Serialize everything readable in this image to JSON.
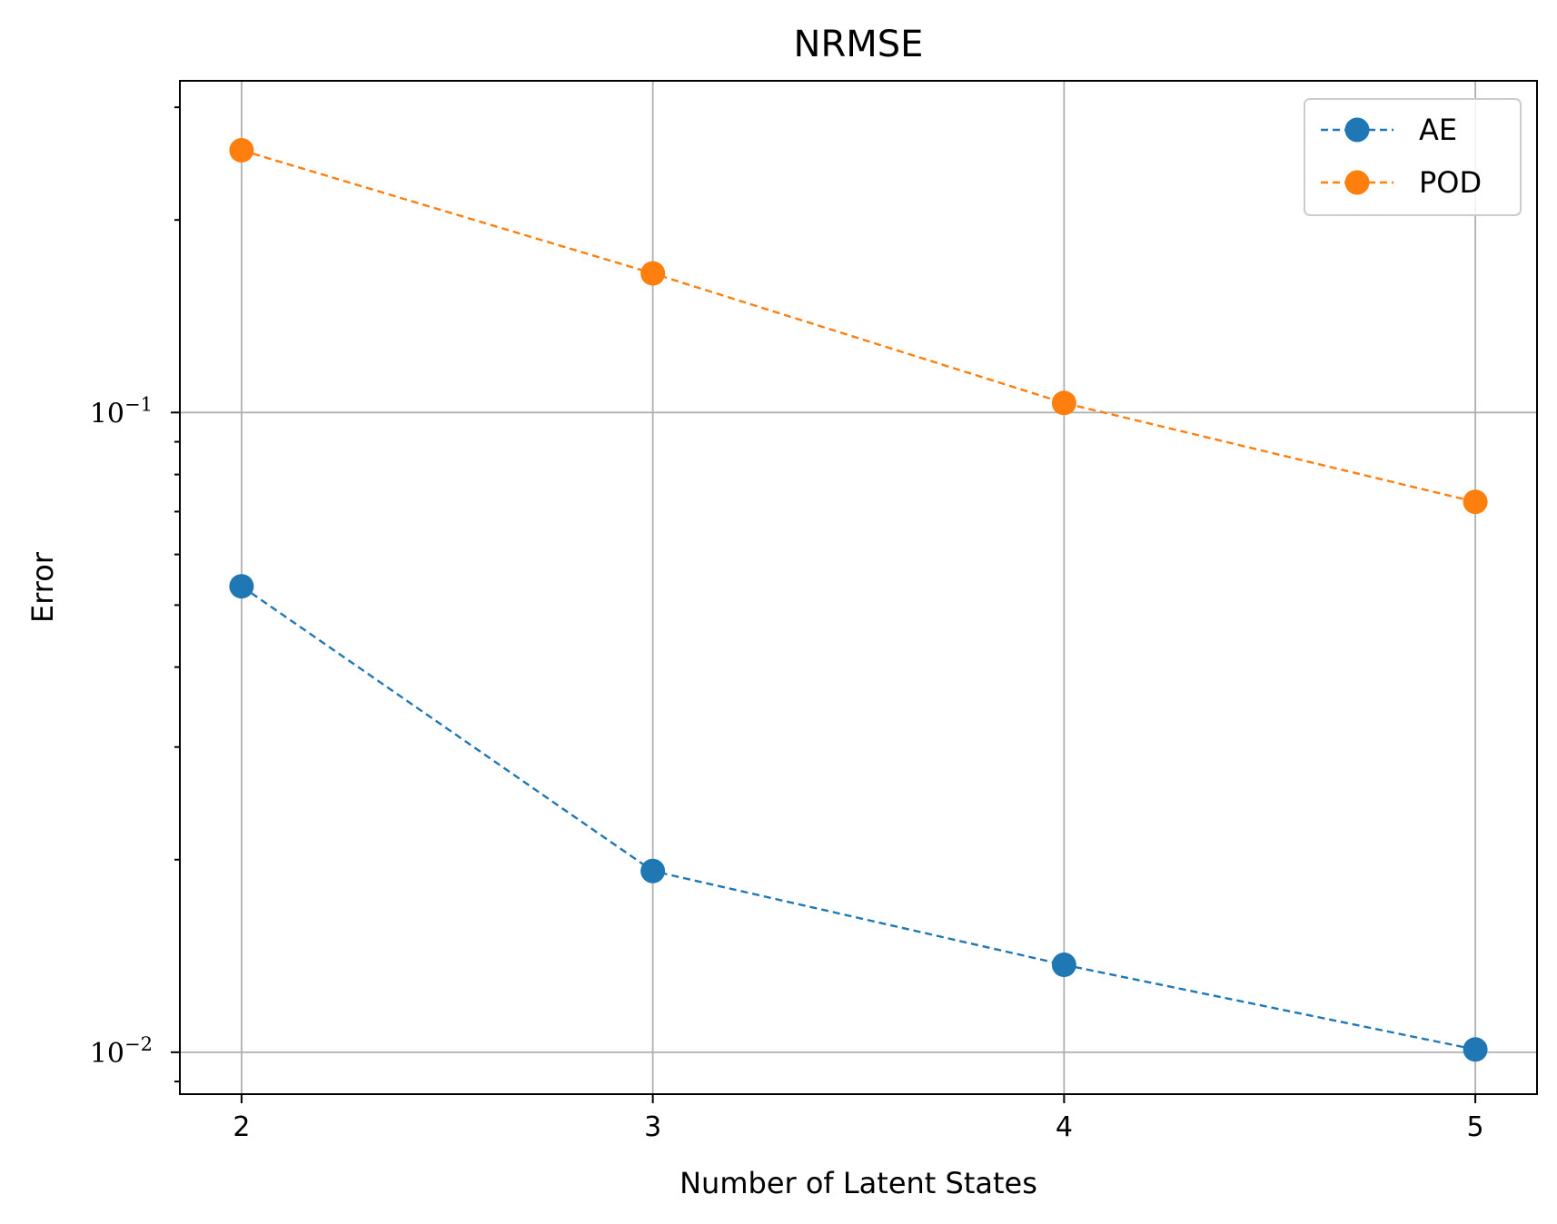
{
  "chart_data": {
    "type": "line",
    "title": "NRMSE",
    "xlabel": "Number of Latent States",
    "ylabel": "Error",
    "x": [
      2,
      3,
      4,
      5
    ],
    "xticks": [
      "2",
      "3",
      "4",
      "5"
    ],
    "xlim": [
      1.85,
      5.15
    ],
    "yscale": "log",
    "ylim": [
      0.0086,
      0.33
    ],
    "yticks": [
      {
        "value": 0.1,
        "base": "10",
        "exp": "−1"
      },
      {
        "value": 0.01,
        "base": "10",
        "exp": "−2"
      }
    ],
    "grid": true,
    "legend_position": "top-right",
    "series": [
      {
        "name": "AE",
        "color": "#1f77b4",
        "line_style": "dashed",
        "marker": "circle",
        "values": [
          0.0535,
          0.0192,
          0.0137,
          0.0101
        ]
      },
      {
        "name": "POD",
        "color": "#ff7f0e",
        "line_style": "dashed",
        "marker": "circle",
        "values": [
          0.257,
          0.165,
          0.1035,
          0.0725
        ]
      }
    ]
  }
}
